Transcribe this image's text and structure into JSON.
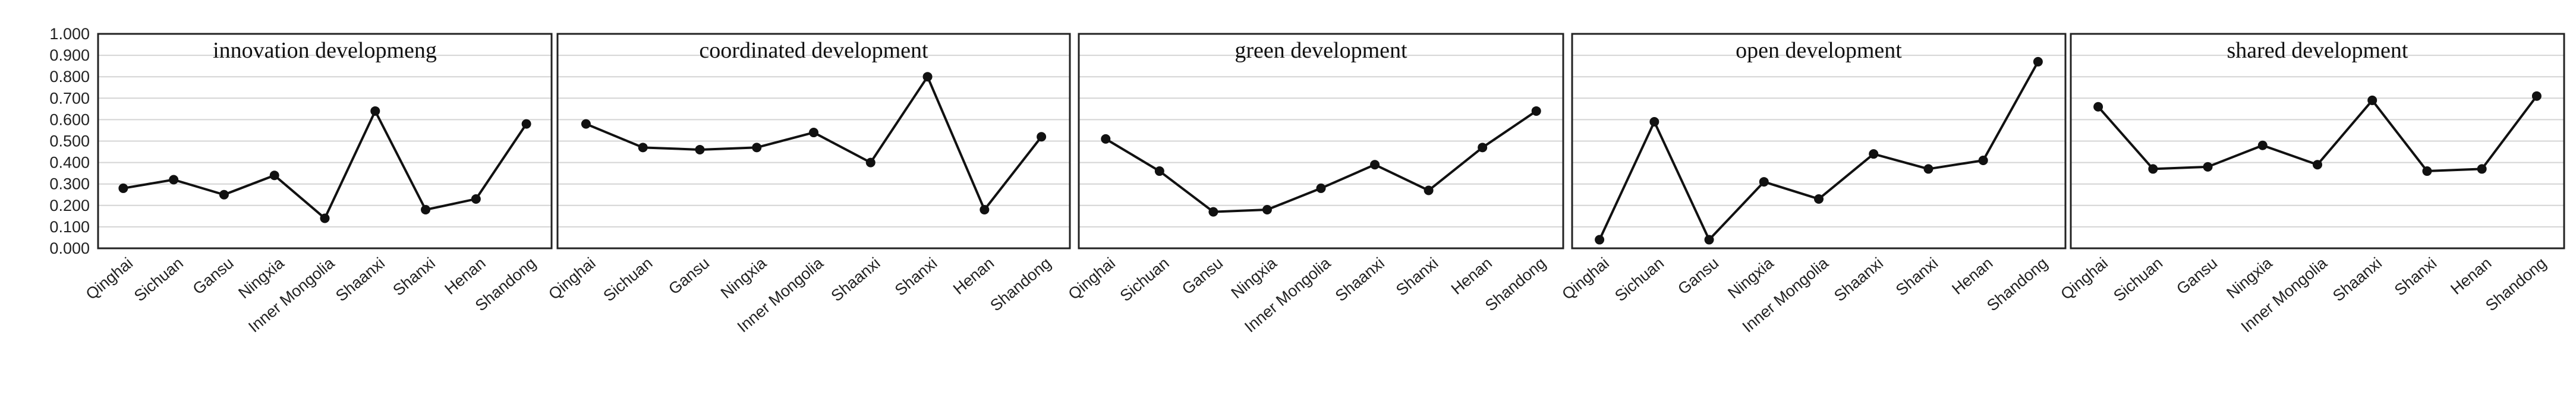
{
  "colors": {
    "line": "#111111",
    "grid": "#d4d4d4",
    "frame": "#222222"
  },
  "chart_data": [
    {
      "type": "line",
      "title": "innovation developmeng",
      "categories": [
        "Qinghai",
        "Sichuan",
        "Gansu",
        "Ningxia",
        "Inner Mongolia",
        "Shaanxi",
        "Shanxi",
        "Henan",
        "Shandong"
      ],
      "values": [
        0.28,
        0.32,
        0.25,
        0.34,
        0.14,
        0.64,
        0.18,
        0.23,
        0.58
      ],
      "ylim": [
        0,
        1.0
      ],
      "yticks": [
        "0.000",
        "0.100",
        "0.200",
        "0.300",
        "0.400",
        "0.500",
        "0.600",
        "0.700",
        "0.800",
        "0.900",
        "1.000"
      ],
      "grid": true
    },
    {
      "type": "line",
      "title": "coordinated development",
      "categories": [
        "Qinghai",
        "Sichuan",
        "Gansu",
        "Ningxia",
        "Inner Mongolia",
        "Shaanxi",
        "Shanxi",
        "Henan",
        "Shandong"
      ],
      "values": [
        0.58,
        0.47,
        0.46,
        0.47,
        0.54,
        0.4,
        0.8,
        0.18,
        0.52
      ],
      "ylim": [
        0,
        1.0
      ],
      "grid": true
    },
    {
      "type": "line",
      "title": "green development",
      "categories": [
        "Qinghai",
        "Sichuan",
        "Gansu",
        "Ningxia",
        "Inner Mongolia",
        "Shaanxi",
        "Shanxi",
        "Henan",
        "Shandong"
      ],
      "values": [
        0.51,
        0.36,
        0.17,
        0.18,
        0.28,
        0.39,
        0.27,
        0.47,
        0.64
      ],
      "ylim": [
        0,
        1.0
      ],
      "grid": true
    },
    {
      "type": "line",
      "title": "open development",
      "categories": [
        "Qinghai",
        "Sichuan",
        "Gansu",
        "Ningxia",
        "Inner Mongolia",
        "Shaanxi",
        "Shanxi",
        "Henan",
        "Shandong"
      ],
      "values": [
        0.04,
        0.59,
        0.04,
        0.31,
        0.23,
        0.44,
        0.37,
        0.41,
        0.87
      ],
      "ylim": [
        0,
        1.0
      ],
      "grid": true
    },
    {
      "type": "line",
      "title": "shared development",
      "categories": [
        "Qinghai",
        "Sichuan",
        "Gansu",
        "Ningxia",
        "Inner Mongolia",
        "Shaanxi",
        "Shanxi",
        "Henan",
        "Shandong"
      ],
      "values": [
        0.66,
        0.37,
        0.38,
        0.48,
        0.39,
        0.69,
        0.36,
        0.37,
        0.71
      ],
      "ylim": [
        0,
        1.0
      ],
      "grid": true
    }
  ]
}
